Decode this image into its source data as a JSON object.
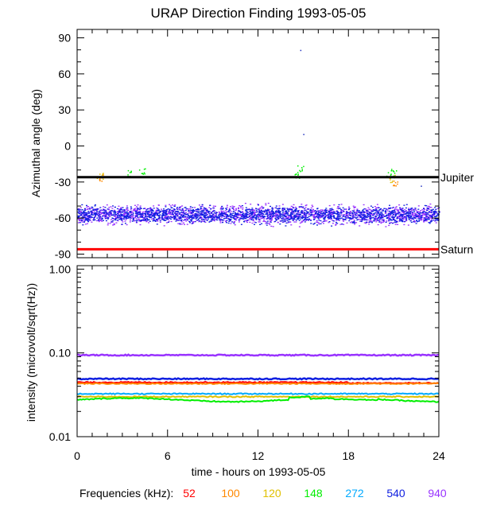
{
  "chart_data": [
    {
      "type": "scatter",
      "title": "URAP Direction Finding  1993-05-05",
      "ylabel": "Azimuthal angle (deg)",
      "xlim": [
        0,
        24
      ],
      "ylim": [
        -93,
        97
      ],
      "yticks": [
        {
          "value": 90,
          "label": "90"
        },
        {
          "value": 60,
          "label": "60"
        },
        {
          "value": 30,
          "label": "30"
        },
        {
          "value": 0,
          "label": "0"
        },
        {
          "value": -30,
          "label": "-30"
        },
        {
          "value": -60,
          "label": "-60"
        },
        {
          "value": -90,
          "label": "-90"
        }
      ],
      "reference_lines": [
        {
          "name": "Jupiter",
          "y": -26,
          "color": "#000000"
        },
        {
          "name": "Saturn",
          "y": -86,
          "color": "#ff0000"
        }
      ],
      "series": [
        {
          "frequency": "940",
          "color": "#9933ff",
          "band_center": -57,
          "band_halfwidth": 8,
          "x_range": [
            0,
            24
          ]
        },
        {
          "frequency": "540",
          "color": "#1020e0",
          "band_center": -57,
          "band_halfwidth": 7,
          "x_range": [
            0,
            24
          ]
        },
        {
          "frequency": "148",
          "color": "#00ee00",
          "clusters": [
            [
              3.5,
              -23
            ],
            [
              4.3,
              -21
            ],
            [
              14.6,
              -24
            ],
            [
              14.8,
              -19
            ],
            [
              20.7,
              -24
            ],
            [
              21.0,
              -22
            ]
          ]
        },
        {
          "frequency": "120",
          "color": "#e0c000",
          "clusters": [
            [
              1.5,
              -25
            ],
            [
              20.9,
              -27
            ]
          ]
        },
        {
          "frequency": "100",
          "color": "#ff8800",
          "clusters": [
            [
              1.6,
              -26
            ],
            [
              21.1,
              -30
            ]
          ]
        }
      ],
      "outliers": [
        [
          14.8,
          80
        ],
        [
          15.0,
          10
        ],
        [
          22.8,
          -33
        ]
      ]
    },
    {
      "type": "line",
      "ylabel": "intensity (microvolt/sqrt(Hz))",
      "xlabel": "time - hours on 1993-05-05",
      "xlim": [
        0,
        24
      ],
      "ylim": [
        0.01,
        1.1
      ],
      "yscale": "log",
      "xticks": [
        {
          "value": 0,
          "label": "0"
        },
        {
          "value": 6,
          "label": "6"
        },
        {
          "value": 12,
          "label": "12"
        },
        {
          "value": 18,
          "label": "18"
        },
        {
          "value": 24,
          "label": "24"
        }
      ],
      "yticks": [
        {
          "value": 1.0,
          "label": "1.00"
        },
        {
          "value": 0.1,
          "label": "0.10"
        },
        {
          "value": 0.01,
          "label": "0.01"
        }
      ],
      "series": [
        {
          "frequency": "940",
          "color": "#9933ff",
          "level": 0.094
        },
        {
          "frequency": "540",
          "color": "#1020e0",
          "level": 0.049
        },
        {
          "frequency": "52",
          "color": "#ff0000",
          "level": 0.0445
        },
        {
          "frequency": "100",
          "color": "#ff8800",
          "level": 0.043
        },
        {
          "frequency": "272",
          "color": "#00aaff",
          "level": 0.0325
        },
        {
          "frequency": "120",
          "color": "#e0c000",
          "level": 0.03
        },
        {
          "frequency": "148",
          "color": "#00ee00",
          "level": 0.0275
        }
      ]
    }
  ],
  "legend": {
    "label": "Frequencies (kHz):",
    "items": [
      {
        "label": "52",
        "color": "#ff0000"
      },
      {
        "label": "100",
        "color": "#ff8800"
      },
      {
        "label": "120",
        "color": "#e0c000"
      },
      {
        "label": "148",
        "color": "#00ee00"
      },
      {
        "label": "272",
        "color": "#00aaff"
      },
      {
        "label": "540",
        "color": "#1020e0"
      },
      {
        "label": "940",
        "color": "#9933ff"
      }
    ]
  }
}
